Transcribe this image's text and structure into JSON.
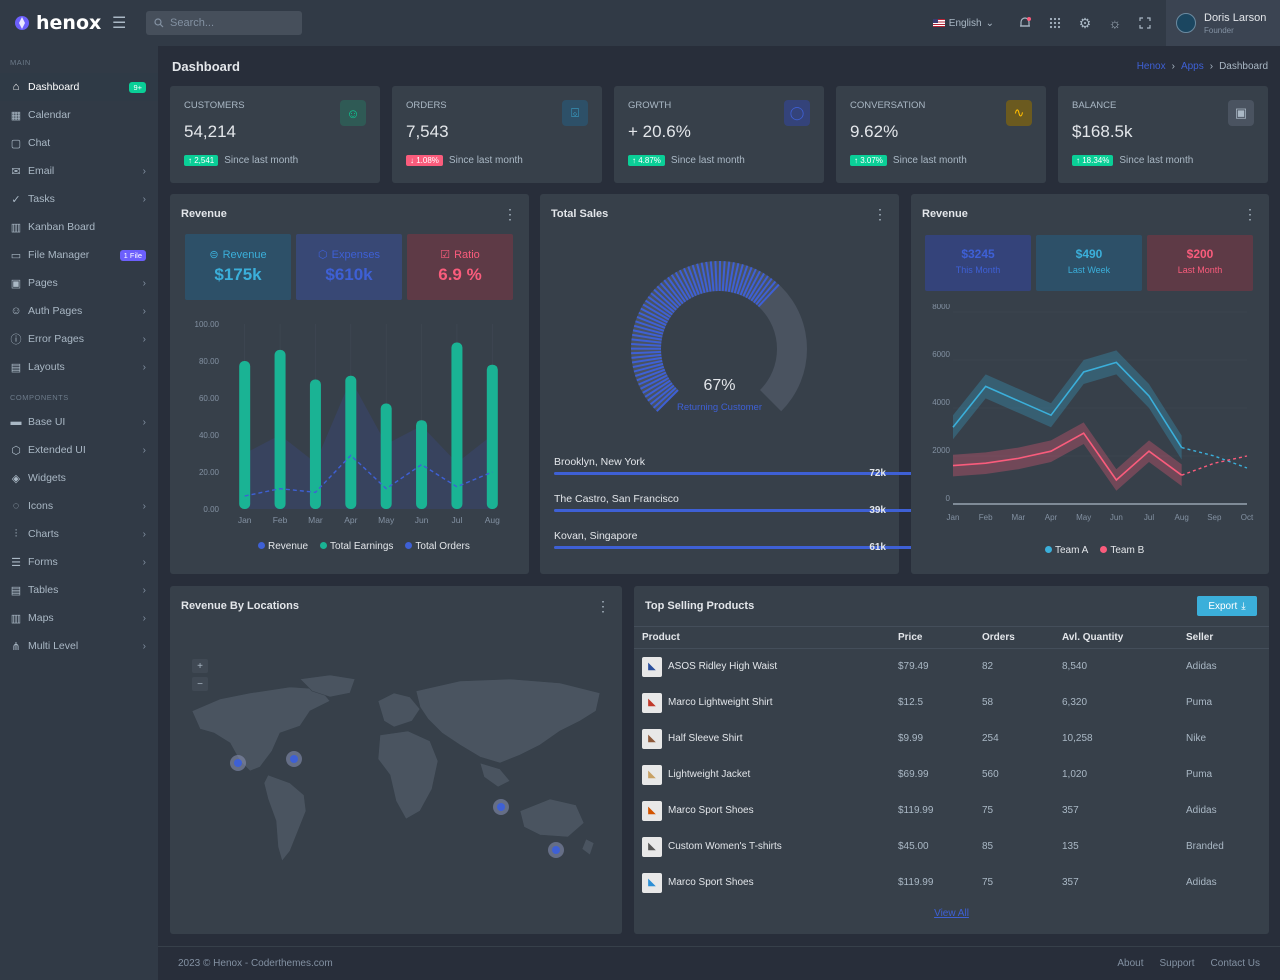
{
  "brand": {
    "name": "henox"
  },
  "search": {
    "placeholder": "Search..."
  },
  "topbar": {
    "language": "English",
    "user_name": "Doris Larson",
    "user_role": "Founder"
  },
  "sidebar": {
    "sections": [
      {
        "title": "MAIN",
        "items": [
          {
            "label": "Dashboard",
            "icon": "home-icon",
            "badge": "9+",
            "badge_color": "#0acf97"
          },
          {
            "label": "Calendar",
            "icon": "calendar-icon"
          },
          {
            "label": "Chat",
            "icon": "chat-icon"
          },
          {
            "label": "Email",
            "icon": "email-icon",
            "arrow": true
          },
          {
            "label": "Tasks",
            "icon": "tasks-icon",
            "arrow": true
          },
          {
            "label": "Kanban Board",
            "icon": "kanban-icon"
          },
          {
            "label": "File Manager",
            "icon": "folder-icon",
            "badge": "1 File",
            "badge_color": "#6c5ffc"
          },
          {
            "label": "Pages",
            "icon": "pages-icon",
            "arrow": true
          },
          {
            "label": "Auth Pages",
            "icon": "auth-icon",
            "arrow": true
          },
          {
            "label": "Error Pages",
            "icon": "error-icon",
            "arrow": true
          },
          {
            "label": "Layouts",
            "icon": "layout-icon",
            "arrow": true
          }
        ]
      },
      {
        "title": "COMPONENTS",
        "items": [
          {
            "label": "Base UI",
            "icon": "briefcase-icon",
            "arrow": true
          },
          {
            "label": "Extended UI",
            "icon": "cube-icon",
            "arrow": true
          },
          {
            "label": "Widgets",
            "icon": "widgets-icon"
          },
          {
            "label": "Icons",
            "icon": "bulb-icon",
            "arrow": true
          },
          {
            "label": "Charts",
            "icon": "chart-icon",
            "arrow": true
          },
          {
            "label": "Forms",
            "icon": "forms-icon",
            "arrow": true
          },
          {
            "label": "Tables",
            "icon": "table-icon",
            "arrow": true
          },
          {
            "label": "Maps",
            "icon": "map-icon",
            "arrow": true
          },
          {
            "label": "Multi Level",
            "icon": "share-icon",
            "arrow": true
          }
        ]
      }
    ]
  },
  "page": {
    "title": "Dashboard",
    "breadcrumb": [
      "Henox",
      "Apps",
      "Dashboard"
    ]
  },
  "stats": [
    {
      "label": "CUSTOMERS",
      "value": "54,214",
      "change": "2,541",
      "direction": "up",
      "note": "Since last month",
      "icon": "users-icon",
      "icon_color": "#0acf97",
      "icon_bg": "#2f5a55"
    },
    {
      "label": "ORDERS",
      "value": "7,543",
      "change": "1.08%",
      "direction": "down",
      "note": "Since last month",
      "icon": "basket-icon",
      "icon_color": "#3bafda",
      "icon_bg": "#2d5068"
    },
    {
      "label": "GROWTH",
      "value": "+ 20.6%",
      "change": "4.87%",
      "direction": "up",
      "note": "Since last month",
      "icon": "growth-icon",
      "icon_color": "#3e60d5",
      "icon_bg": "#34437a"
    },
    {
      "label": "CONVERSATION",
      "value": "9.62%",
      "change": "3.07%",
      "direction": "up",
      "note": "Since last month",
      "icon": "pulse-icon",
      "icon_color": "#ffbc00",
      "icon_bg": "#6b5a1f"
    },
    {
      "label": "BALANCE",
      "value": "$168.5k",
      "change": "18.34%",
      "direction": "up",
      "note": "Since last month",
      "icon": "wallet-icon",
      "icon_color": "#aab8c5",
      "icon_bg": "#4a5360"
    }
  ],
  "revenue_card": {
    "title": "Revenue",
    "boxes": [
      {
        "label": "Revenue",
        "value": "$175k",
        "color": "#3bafda",
        "bg": "#2d5068",
        "icon": "revenue-icon"
      },
      {
        "label": "Expenses",
        "value": "$610k",
        "color": "#3e60d5",
        "bg": "#384875",
        "icon": "box-icon"
      },
      {
        "label": "Ratio",
        "value": "6.9 %",
        "color": "#fa5c7c",
        "bg": "#5e3a46",
        "icon": "check-icon"
      }
    ],
    "legend": [
      "Revenue",
      "Total Earnings",
      "Total Orders"
    ]
  },
  "sales_card": {
    "title": "Total Sales",
    "gauge_percent": "67%",
    "gauge_label": "Returning Customer",
    "locations": [
      {
        "name": "Brooklyn, New York",
        "value": "72k",
        "fill": 72
      },
      {
        "name": "The Castro, San Francisco",
        "value": "39k",
        "fill": 39
      },
      {
        "name": "Kovan, Singapore",
        "value": "61k",
        "fill": 61
      }
    ]
  },
  "revenue2_card": {
    "title": "Revenue",
    "boxes": [
      {
        "value": "$3245",
        "label": "This Month",
        "color": "#3e60d5",
        "bg": "#34437a"
      },
      {
        "value": "$490",
        "label": "Last Week",
        "color": "#3bafda",
        "bg": "#2d5068"
      },
      {
        "value": "$200",
        "label": "Last Month",
        "color": "#fa5c7c",
        "bg": "#5e3a46"
      }
    ],
    "legend": [
      "Team A",
      "Team B"
    ]
  },
  "map_card": {
    "title": "Revenue By Locations",
    "zoom_in": "+",
    "zoom_out": "−"
  },
  "products_card": {
    "title": "Top Selling Products",
    "export_label": "Export",
    "columns": [
      "Product",
      "Price",
      "Orders",
      "Avl. Quantity",
      "Seller"
    ],
    "rows": [
      [
        "ASOS Ridley High Waist",
        "$79.49",
        "82",
        "8,540",
        "Adidas"
      ],
      [
        "Marco Lightweight Shirt",
        "$12.5",
        "58",
        "6,320",
        "Puma"
      ],
      [
        "Half Sleeve Shirt",
        "$9.99",
        "254",
        "10,258",
        "Nike"
      ],
      [
        "Lightweight Jacket",
        "$69.99",
        "560",
        "1,020",
        "Puma"
      ],
      [
        "Marco Sport Shoes",
        "$119.99",
        "75",
        "357",
        "Adidas"
      ],
      [
        "Custom Women's T-shirts",
        "$45.00",
        "85",
        "135",
        "Branded"
      ],
      [
        "Marco Sport Shoes",
        "$119.99",
        "75",
        "357",
        "Adidas"
      ]
    ],
    "view_all": "View All"
  },
  "footer": {
    "copyright": "2023 © Henox - Coderthemes.com",
    "links": [
      "About",
      "Support",
      "Contact Us"
    ]
  },
  "chart_data": [
    {
      "type": "bar",
      "title": "Revenue",
      "categories": [
        "Jan",
        "Feb",
        "Mar",
        "Apr",
        "May",
        "Jun",
        "Jul",
        "Aug"
      ],
      "ylim": [
        0,
        100
      ],
      "yticks": [
        "0.00",
        "20.00",
        "40.00",
        "60.00",
        "80.00",
        "100.00"
      ],
      "series": [
        {
          "name": "Revenue",
          "type": "line",
          "values": [
            7,
            11,
            9,
            29,
            11,
            24,
            12,
            20
          ],
          "color": "#3e60d5"
        },
        {
          "name": "Total Earnings",
          "type": "bar",
          "values": [
            80,
            86,
            70,
            72,
            57,
            48,
            90,
            78
          ],
          "color": "#1ab394"
        },
        {
          "name": "Total Orders",
          "type": "area",
          "values": [
            30,
            40,
            25,
            70,
            35,
            45,
            25,
            40
          ],
          "color": "#3a4670"
        }
      ]
    },
    {
      "type": "pie",
      "title": "Total Sales",
      "values": [
        67,
        33
      ],
      "labels": [
        "Returning Customer",
        ""
      ]
    },
    {
      "type": "area",
      "title": "Revenue",
      "x": [
        "Jan",
        "Feb",
        "Mar",
        "Apr",
        "May",
        "Jun",
        "Jul",
        "Aug",
        "Sep",
        "Oct"
      ],
      "ylim": [
        0,
        8000
      ],
      "yticks": [
        "0",
        "2000",
        "4000",
        "6000",
        "8000"
      ],
      "series": [
        {
          "name": "Team A",
          "values": [
            3200,
            4900,
            4300,
            3700,
            5500,
            5900,
            4500,
            2350,
            2000,
            1500
          ],
          "color": "#3bafda"
        },
        {
          "name": "Team B",
          "values": [
            1600,
            1700,
            1900,
            2200,
            2950,
            1000,
            2200,
            1200,
            1700,
            2000
          ],
          "color": "#fa5c7c"
        }
      ]
    }
  ]
}
